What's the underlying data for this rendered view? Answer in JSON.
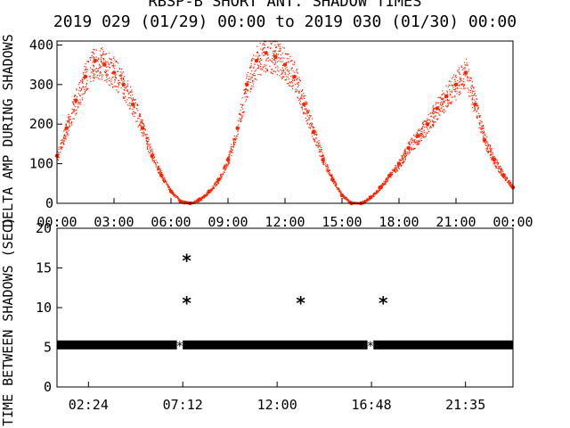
{
  "title": "RBSP-B SHORT ANT. SHADOW TIMES",
  "subtitle": "2019 029 (01/29) 00:00 to 2019 030 (01/30) 00:00",
  "colors": {
    "series_top": "#ff2200",
    "series_bottom": "#000000",
    "axes": "#000000"
  },
  "chart_data": [
    {
      "type": "scatter",
      "ylabel": "DELTA AMP DURING SHADOWS",
      "ylim": [
        0,
        410
      ],
      "yticks": [
        0,
        100,
        200,
        300,
        400
      ],
      "xlim": [
        "00:00",
        "24:00"
      ],
      "xtick_labels": [
        "00:00",
        "03:00",
        "06:00",
        "09:00",
        "12:00",
        "15:00",
        "18:00",
        "21:00",
        "00:00"
      ],
      "series": [
        {
          "x": [
            "00:00",
            "00:30",
            "01:00",
            "01:30",
            "02:00",
            "02:30",
            "03:00",
            "03:30",
            "04:00",
            "04:30",
            "05:00",
            "05:30",
            "06:00",
            "06:30",
            "07:00",
            "07:30",
            "08:00",
            "08:30",
            "09:00",
            "09:30",
            "10:00",
            "10:30",
            "11:00",
            "11:30",
            "12:00",
            "12:30",
            "13:00",
            "13:30",
            "14:00",
            "14:30",
            "15:00",
            "15:30",
            "16:00",
            "16:30",
            "17:00",
            "17:30",
            "18:00",
            "18:30",
            "19:00",
            "19:30",
            "20:00",
            "20:30",
            "21:00",
            "21:30",
            "22:00",
            "22:30",
            "23:00",
            "23:30",
            "24:00"
          ],
          "y": [
            120,
            190,
            260,
            320,
            360,
            350,
            330,
            300,
            250,
            190,
            120,
            70,
            30,
            5,
            0,
            10,
            30,
            60,
            110,
            190,
            300,
            360,
            380,
            370,
            350,
            320,
            250,
            180,
            110,
            60,
            20,
            0,
            0,
            15,
            40,
            70,
            100,
            140,
            170,
            200,
            240,
            270,
            300,
            330,
            250,
            160,
            110,
            70,
            40
          ]
        }
      ]
    },
    {
      "type": "scatter",
      "ylabel": "TIME BETWEEN SHADOWS (SEC)",
      "ylim": [
        0,
        20
      ],
      "yticks": [
        0,
        5,
        10,
        15,
        20
      ],
      "xlim": [
        "00:48",
        "24:00"
      ],
      "xtick_labels": [
        "02:24",
        "07:12",
        "12:00",
        "16:48",
        "21:35"
      ],
      "series": [
        {
          "x": [
            "07:24",
            "07:24",
            "13:12",
            "17:24"
          ],
          "y": [
            16,
            10.7,
            10.7,
            10.7
          ]
        }
      ],
      "band": {
        "y": 5.3,
        "from": "00:48",
        "to": "24:00",
        "gaps": [
          [
            "06:54",
            "07:12"
          ],
          [
            "16:36",
            "16:54"
          ]
        ]
      }
    }
  ]
}
